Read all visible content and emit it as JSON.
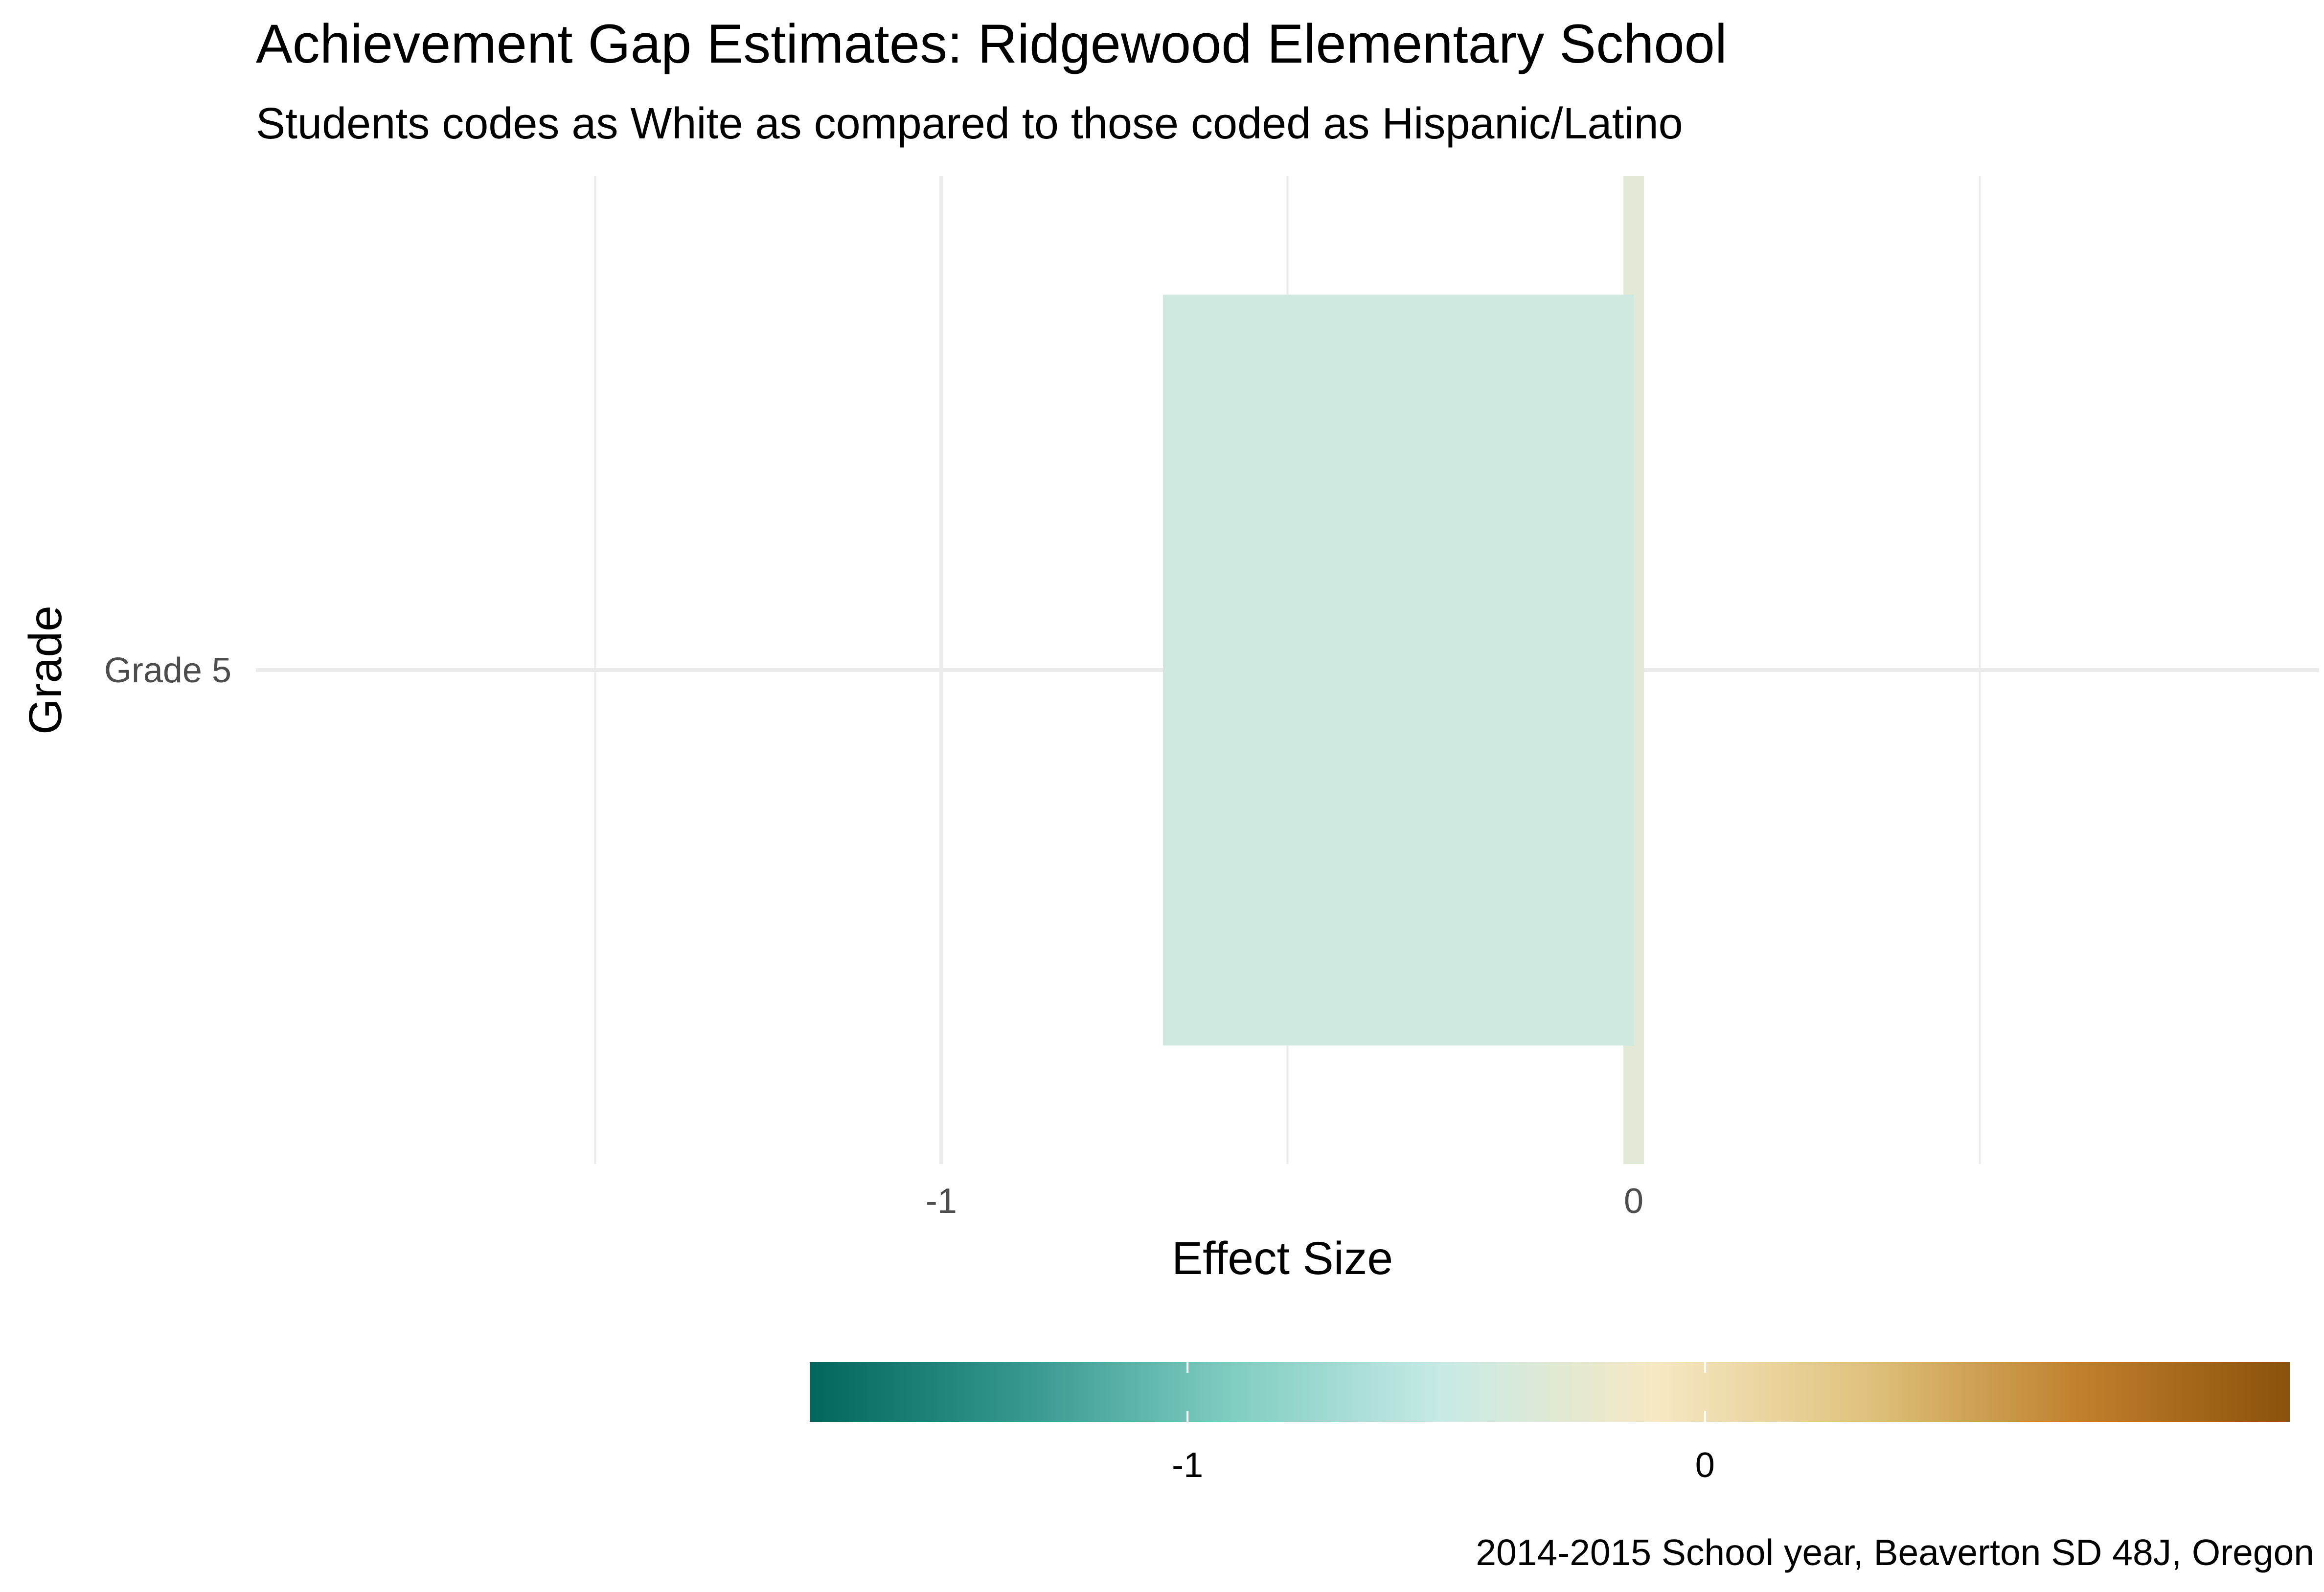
{
  "chart_data": {
    "type": "bar",
    "orientation": "horizontal",
    "title": "Achievement Gap Estimates: Ridgewood Elementary School",
    "subtitle": "Students codes as White as compared to those coded as Hispanic/Latino",
    "xlabel": "Effect Size",
    "ylabel": "Grade",
    "caption": "2014-2015 School year, Beaverton SD 48J, Oregon",
    "categories": [
      "Grade 5"
    ],
    "series": [
      {
        "values": [
          -0.68
        ]
      }
    ],
    "reference_band": {
      "from": -0.015,
      "to": 0.015,
      "color": "#e2ead7"
    },
    "xlim": [
      -1.99,
      0.99
    ],
    "x_ticks": [
      {
        "value": -1,
        "label": "-1"
      },
      {
        "value": 0,
        "label": "0"
      }
    ],
    "x_minor_gridlines": [
      -1.5,
      -0.5,
      0.5
    ],
    "grid": true,
    "bar_color": "#cfe9e0",
    "legend": {
      "type": "colorbar",
      "position": "bottom",
      "limits": [
        -1.73,
        1.13
      ],
      "ticks": [
        {
          "value": -1,
          "label": "-1"
        },
        {
          "value": 0,
          "label": "0"
        }
      ],
      "palette": [
        "#01665e",
        "#35978f",
        "#80cdc1",
        "#c7eae5",
        "#f6e8c3",
        "#dfc27d",
        "#bf812d",
        "#8c510a"
      ]
    }
  }
}
